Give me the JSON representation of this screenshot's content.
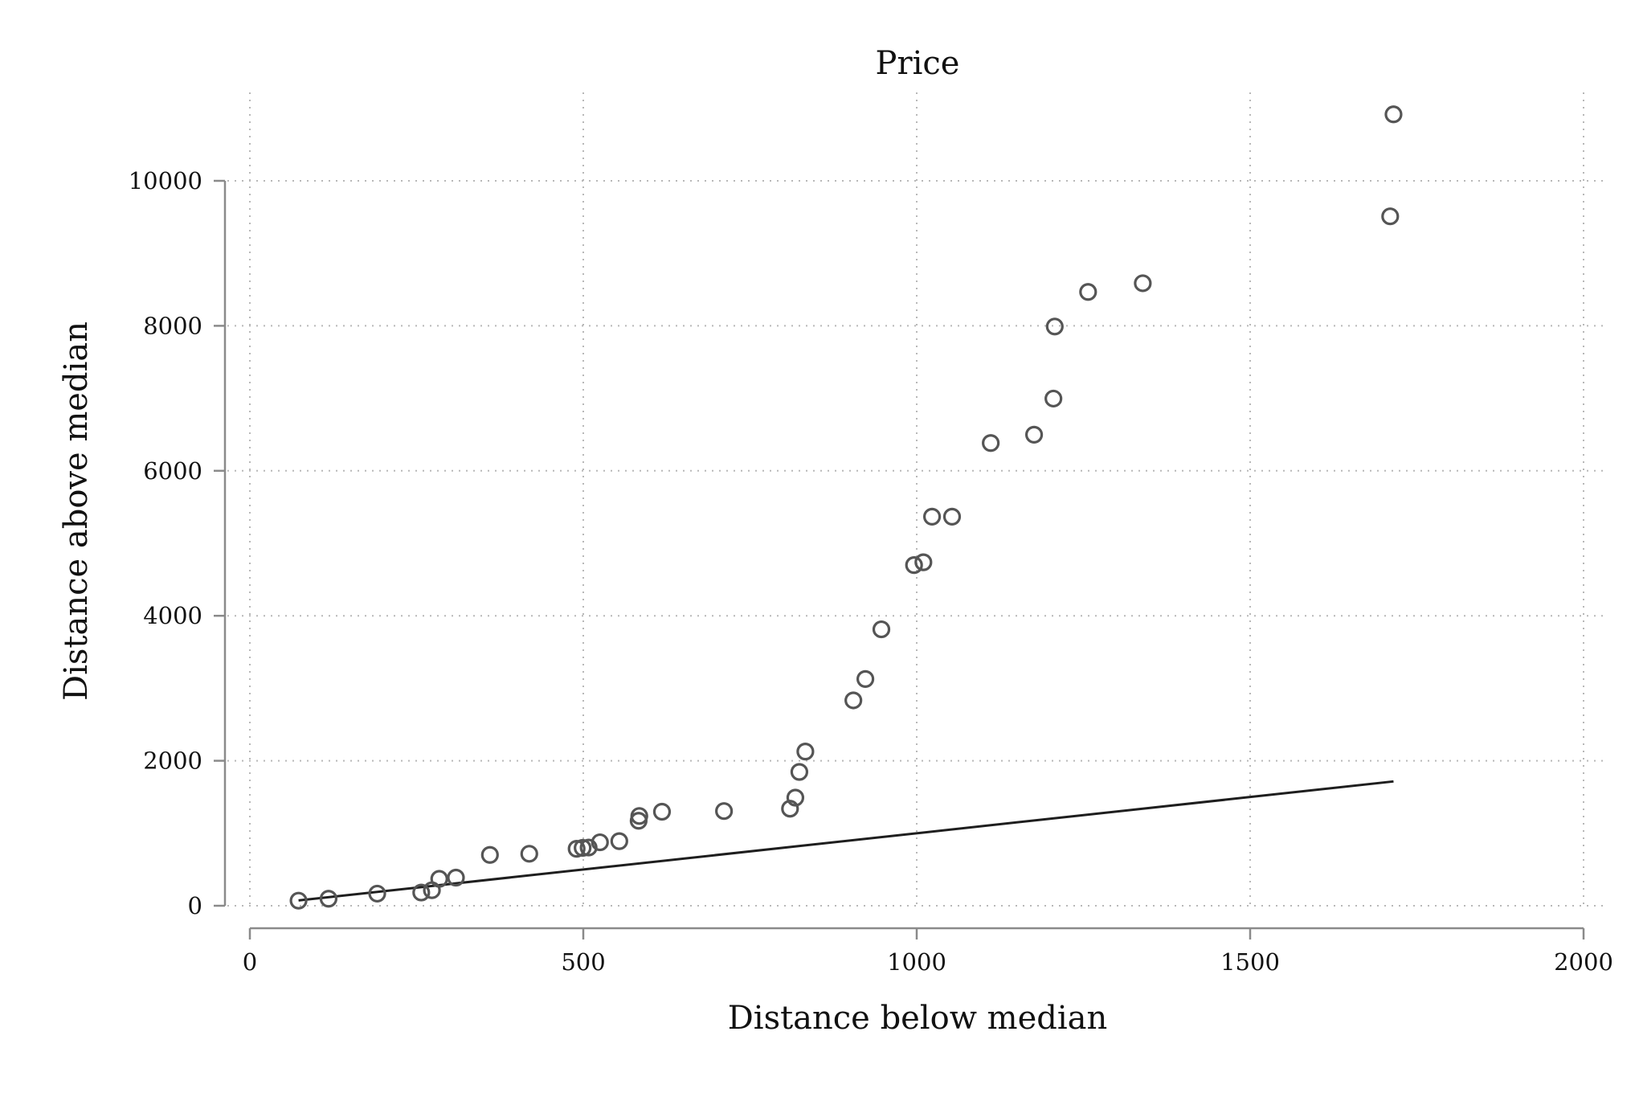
{
  "chart_data": {
    "type": "scatter",
    "title": "Price",
    "xlabel": "Distance below median",
    "ylabel": "Distance above median",
    "xlim": [
      0,
      2000
    ],
    "ylim": [
      0,
      10000
    ],
    "x_ticks": [
      0,
      500,
      1000,
      1500,
      2000
    ],
    "y_ticks": [
      0,
      2000,
      4000,
      6000,
      8000,
      10000
    ],
    "grid": true,
    "colors": {
      "points": "#555555",
      "line": "#1e1e1e",
      "grid": "#b8b8b8",
      "axis": "#8a8a8a"
    },
    "series": [
      {
        "type": "scatter",
        "points": [
          [
            73,
            70
          ],
          [
            118,
            97
          ],
          [
            191,
            167
          ],
          [
            257,
            182
          ],
          [
            273,
            214
          ],
          [
            284,
            371
          ],
          [
            309,
            388
          ],
          [
            360,
            701
          ],
          [
            419,
            717
          ],
          [
            490,
            786
          ],
          [
            499,
            798
          ],
          [
            508,
            803
          ],
          [
            525,
            875
          ],
          [
            554,
            891
          ],
          [
            583,
            1172
          ],
          [
            584,
            1238
          ],
          [
            618,
            1297
          ],
          [
            711,
            1306
          ],
          [
            810,
            1339
          ],
          [
            818,
            1491
          ],
          [
            824,
            1846
          ],
          [
            833,
            2127
          ],
          [
            905,
            2833
          ],
          [
            923,
            3128
          ],
          [
            947,
            3813
          ],
          [
            996,
            4699
          ],
          [
            1010,
            4738
          ],
          [
            1023,
            5367
          ],
          [
            1053,
            5367
          ],
          [
            1111,
            6383
          ],
          [
            1176,
            6498
          ],
          [
            1205,
            6996
          ],
          [
            1207,
            7990
          ],
          [
            1257,
            8467
          ],
          [
            1339,
            8587
          ],
          [
            1710,
            9510
          ],
          [
            1715,
            10917
          ]
        ]
      },
      {
        "type": "line",
        "points": [
          [
            73,
            73
          ],
          [
            1715,
            1715
          ]
        ]
      }
    ]
  }
}
